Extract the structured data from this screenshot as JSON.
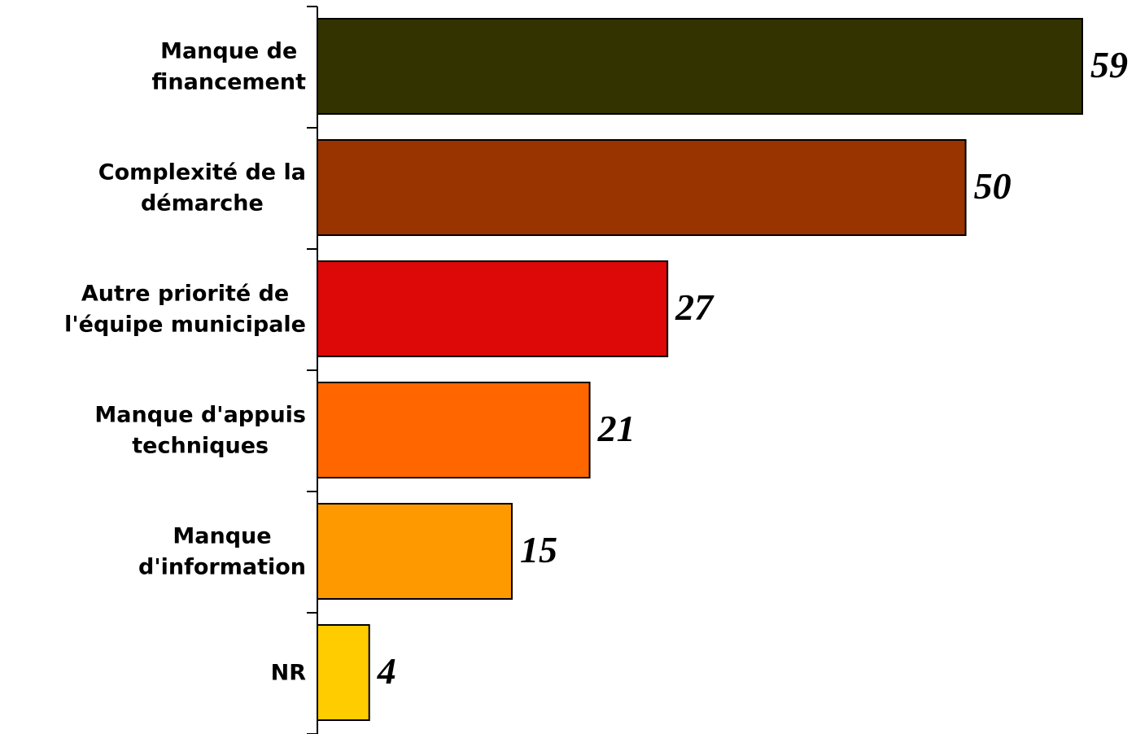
{
  "chart_data": {
    "type": "bar",
    "orientation": "horizontal",
    "categories": [
      "Manque de\nfinancement",
      "Complexité de la\ndémarche",
      "Autre priorité de\nl'équipe municipale",
      "Manque d'appuis\ntechniques",
      "Manque\nd'information",
      "NR"
    ],
    "values": [
      59,
      50,
      27,
      21,
      15,
      4
    ],
    "colors": [
      "#333300",
      "#993300",
      "#dd0808",
      "#ff6600",
      "#ff9900",
      "#ffcc00"
    ]
  }
}
